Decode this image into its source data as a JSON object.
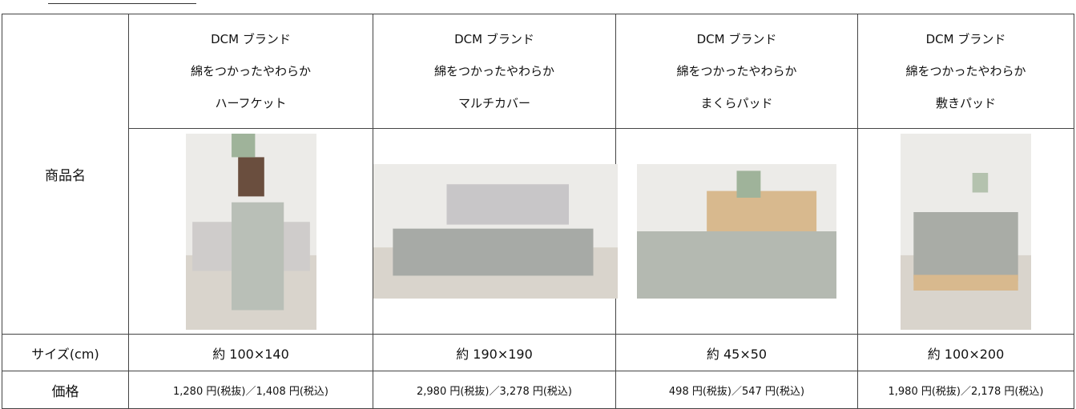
{
  "table": {
    "row_labels": [
      "商品名",
      "サイズ(cm)",
      "価格"
    ],
    "products": [
      {
        "brand": "DCM ブランド",
        "line1": "綿をつかったやわらか",
        "line2": "ハーフケット",
        "size": "約 100×140",
        "price": "1,280 円(税抜)／1,408 円(税込)"
      },
      {
        "brand": "DCM ブランド",
        "line1": "綿をつかったやわらか",
        "line2": "マルチカバー",
        "size": "約 190×190",
        "price": "2,980 円(税抜)／3,278 円(税込)"
      },
      {
        "brand": "DCM ブランド",
        "line1": "綿をつかったやわらか",
        "line2": "まくらパッド",
        "size": "約 45×50",
        "price": "498 円(税抜)／547 円(税込)"
      },
      {
        "brand": "DCM ブランド",
        "line1": "綿をつかったやわらか",
        "line2": "敷きパッド",
        "size": "約 100×200",
        "price": "1,980 円(税抜)／2,178 円(税込)"
      }
    ]
  }
}
